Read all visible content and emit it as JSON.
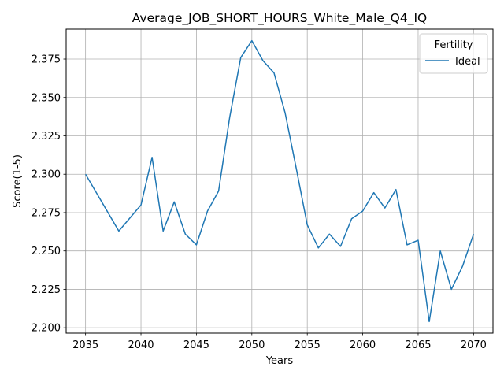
{
  "chart_data": {
    "type": "line",
    "title": "Average_JOB_SHORT_HOURS_White_Male_Q4_IQ",
    "xlabel": "Years",
    "ylabel": "Score(1-5)",
    "xlim": [
      2033.25,
      2071.75
    ],
    "ylim": [
      2.1965,
      2.3945
    ],
    "xticks": [
      2035,
      2040,
      2045,
      2050,
      2055,
      2060,
      2065,
      2070
    ],
    "yticks": [
      2.2,
      2.225,
      2.25,
      2.275,
      2.3,
      2.325,
      2.35,
      2.375
    ],
    "ytick_labels": [
      "2.200",
      "2.225",
      "2.250",
      "2.275",
      "2.300",
      "2.325",
      "2.350",
      "2.375"
    ],
    "grid": true,
    "legend": {
      "title": "Fertility",
      "placement": "top-right"
    },
    "series": [
      {
        "name": "Ideal",
        "color": "#1f77b4",
        "x": [
          2035,
          2038,
          2040,
          2041,
          2042,
          2043,
          2044,
          2045,
          2046,
          2047,
          2048,
          2049,
          2050,
          2051,
          2052,
          2053,
          2054,
          2055,
          2056,
          2057,
          2058,
          2059,
          2060,
          2061,
          2062,
          2063,
          2064,
          2065,
          2066,
          2067,
          2068,
          2069,
          2070
        ],
        "y": [
          2.3,
          2.263,
          2.28,
          2.311,
          2.263,
          2.282,
          2.261,
          2.254,
          2.276,
          2.289,
          2.337,
          2.376,
          2.387,
          2.374,
          2.366,
          2.34,
          2.304,
          2.267,
          2.252,
          2.261,
          2.253,
          2.271,
          2.276,
          2.288,
          2.278,
          2.29,
          2.254,
          2.257,
          2.204,
          2.25,
          2.225,
          2.24,
          2.261
        ]
      }
    ]
  }
}
